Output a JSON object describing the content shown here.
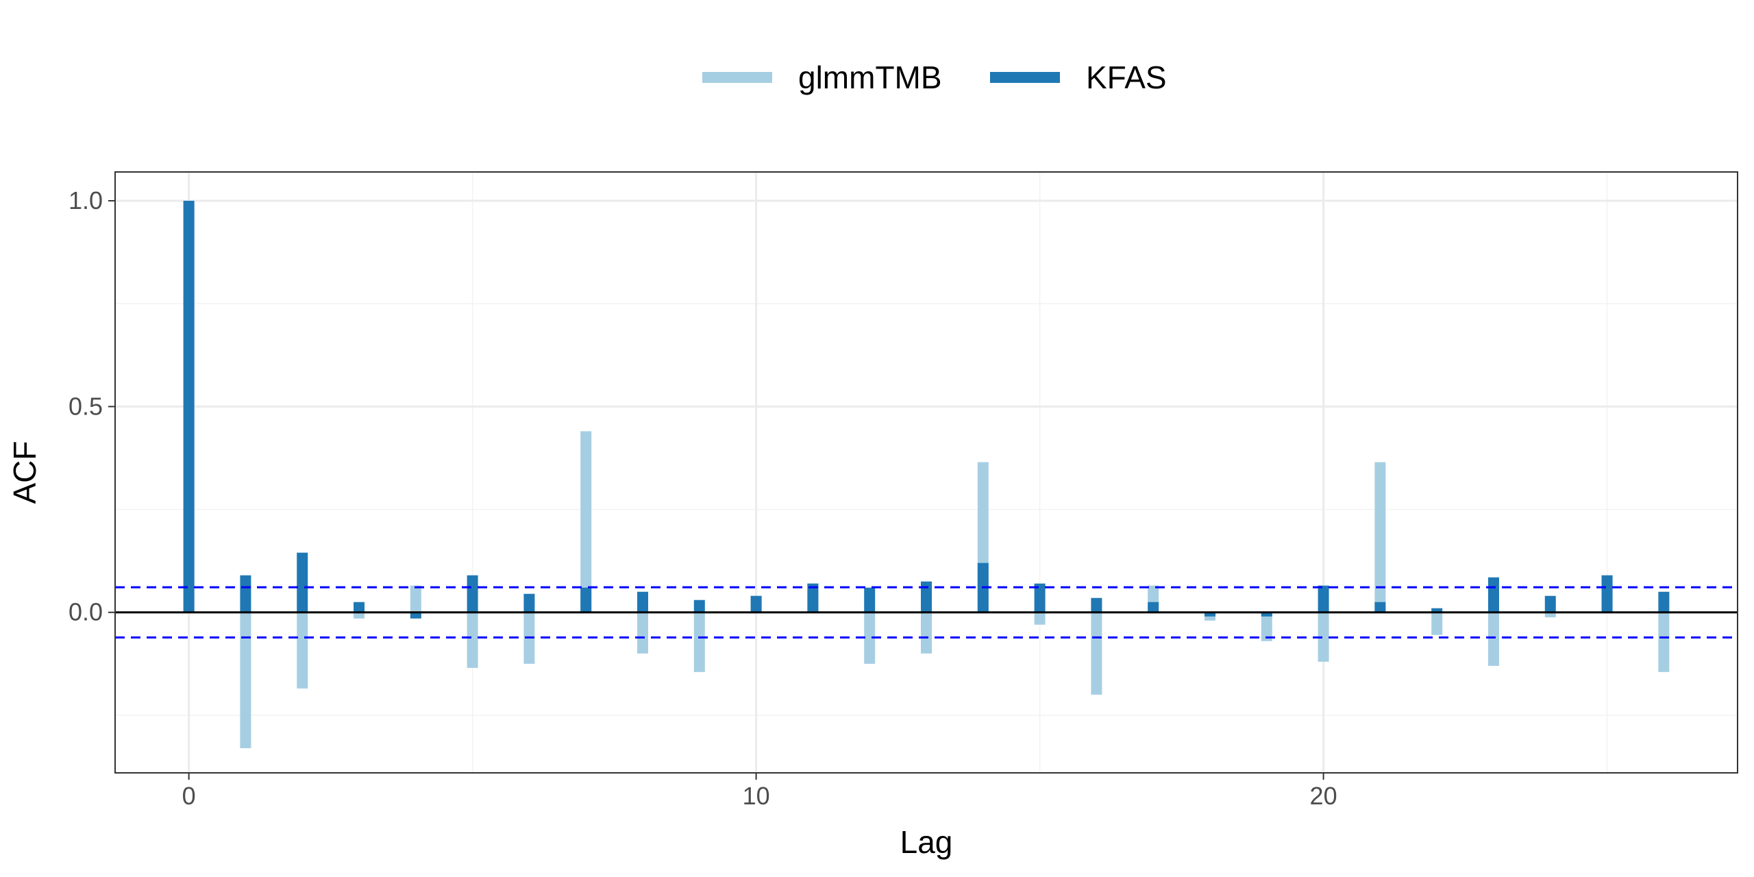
{
  "chart_data": {
    "type": "bar",
    "xlabel": "Lag",
    "ylabel": "ACF",
    "xlim": [
      -1.3,
      27.3
    ],
    "ylim": [
      -0.39,
      1.07
    ],
    "x_ticks": [
      0,
      10,
      20
    ],
    "y_ticks": [
      0.0,
      0.5,
      1.0
    ],
    "y_tick_labels": [
      "0.0",
      "0.5",
      "1.0"
    ],
    "grid": true,
    "legend_position": "top",
    "confidence_band": 0.061,
    "confidence_color": "#0000ff",
    "x": [
      0,
      1,
      2,
      3,
      4,
      5,
      6,
      7,
      8,
      9,
      10,
      11,
      12,
      13,
      14,
      15,
      16,
      17,
      18,
      19,
      20,
      21,
      22,
      23,
      24,
      25,
      26
    ],
    "series": [
      {
        "name": "glmmTMB",
        "color": "#a6cee3",
        "values": [
          1.0,
          -0.33,
          -0.185,
          -0.015,
          0.065,
          -0.135,
          -0.125,
          0.44,
          -0.1,
          -0.145,
          0.04,
          0.07,
          -0.125,
          -0.1,
          0.365,
          -0.03,
          -0.2,
          0.065,
          -0.02,
          -0.07,
          -0.12,
          0.365,
          -0.055,
          -0.13,
          -0.012,
          0.09,
          -0.145
        ]
      },
      {
        "name": "KFAS",
        "color": "#1f78b4",
        "values": [
          1.0,
          0.09,
          0.145,
          0.025,
          -0.015,
          0.09,
          0.045,
          0.06,
          0.05,
          0.03,
          0.04,
          0.07,
          0.06,
          0.075,
          0.12,
          0.07,
          0.035,
          0.025,
          -0.01,
          -0.01,
          0.065,
          0.025,
          0.01,
          0.085,
          0.04,
          0.09,
          0.05
        ]
      }
    ]
  }
}
